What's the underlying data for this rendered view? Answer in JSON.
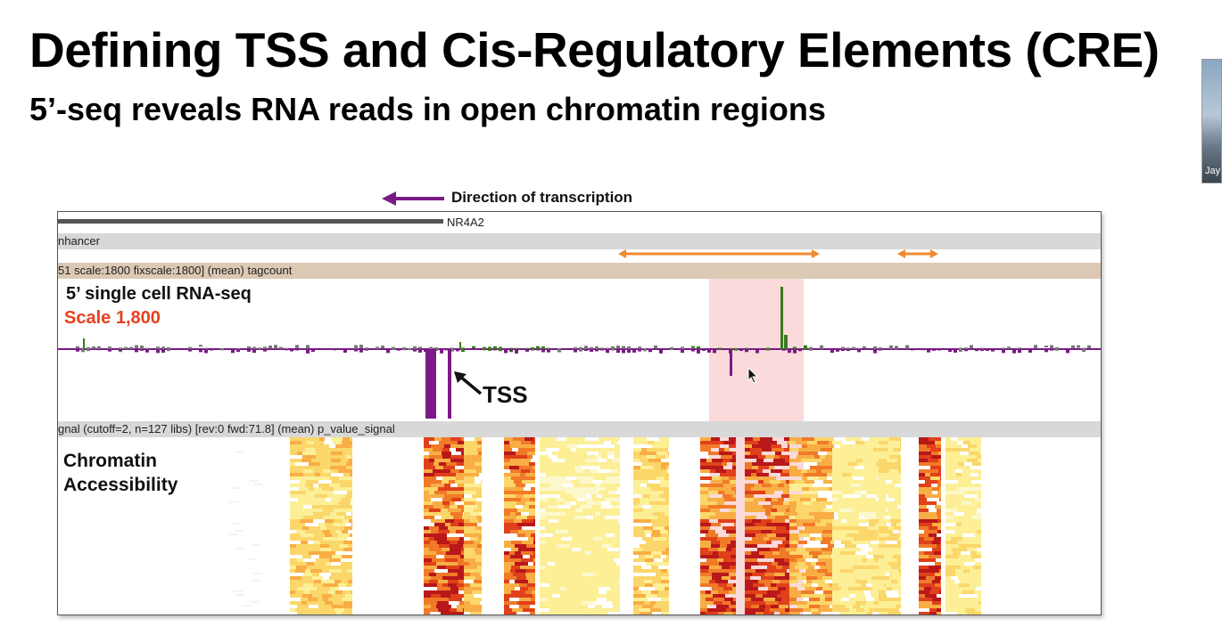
{
  "slide": {
    "title": "Defining TSS and Cis-Regulatory Elements (CRE)",
    "subtitle": "5’-seq reveals RNA reads in open chromatin regions"
  },
  "video_thumbnail": {
    "label": "Jay"
  },
  "annotations": {
    "direction": "Direction of transcription",
    "tss": "TSS",
    "chromatin": [
      "Chromatin",
      "Accessibility"
    ]
  },
  "browser": {
    "gene_label": "NR4A2",
    "enhancer_track": "nhancer",
    "tagcount_track": "51 scale:1800 fixscale:1800] (mean) tagcount",
    "rna_track_name": "5’ single cell RNA-seq",
    "rna_scale": "Scale 1,800",
    "signal_track": "gnal (cutoff=2, n=127 libs) [rev:0 fwd:71.8] (mean) p_value_signal"
  },
  "colors": {
    "arrow_purple": "#7a1a86",
    "forward_green": "#3a7a1e",
    "reverse_purple": "#7a1a86",
    "scale_red": "#e8401c",
    "enhancer_orange": "#f08a2e",
    "highlight": "#f0a0a0"
  }
}
